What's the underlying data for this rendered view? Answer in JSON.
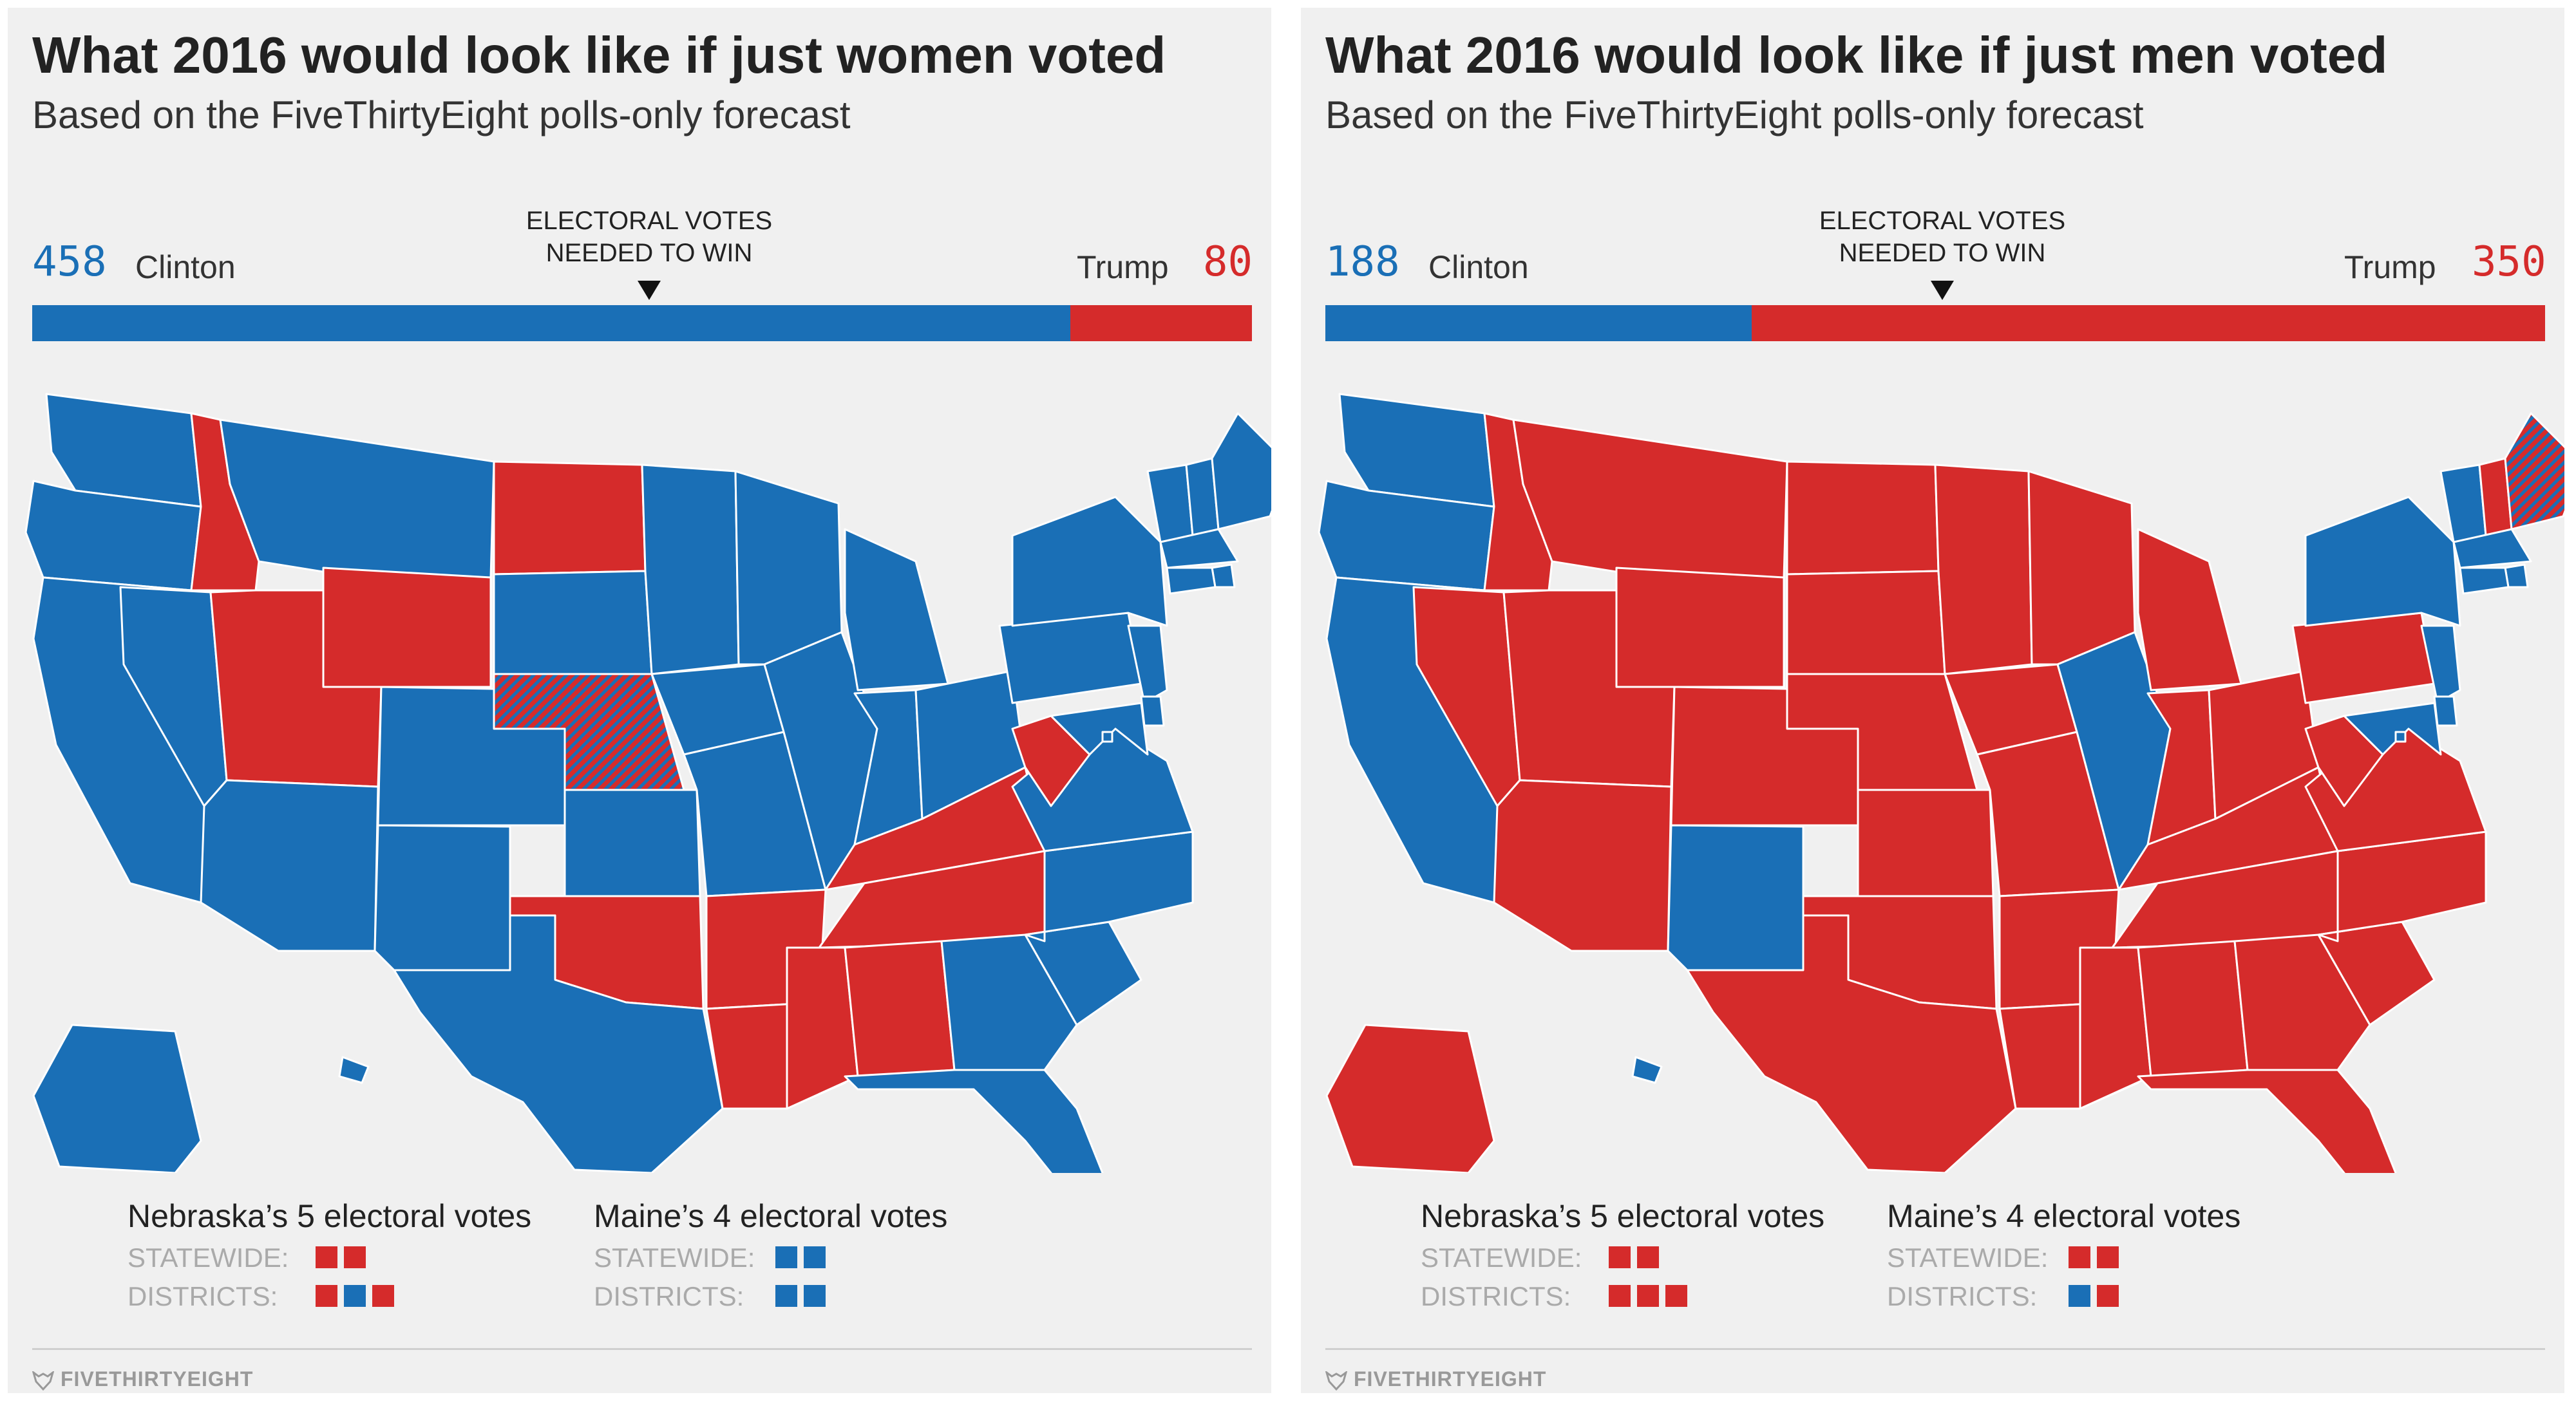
{
  "colors": {
    "clinton": "#1a6fb6",
    "trump": "#d52b2b",
    "border": "#ffffff"
  },
  "common": {
    "subtitle": "Based on the FiveThirtyEight polls-only forecast",
    "ev_line1": "ELECTORAL VOTES",
    "ev_line2": "NEEDED TO WIN",
    "clinton_label": "Clinton",
    "trump_label": "Trump",
    "statewide_label": "STATEWIDE:",
    "districts_label": "DISTRICTS:",
    "nebraska_title": "Nebraska’s 5 electoral votes",
    "maine_title": "Maine’s 4 electoral votes",
    "logo": "FIVETHIRTYEIGHT"
  },
  "women": {
    "title": "What 2016 would look like if just women voted",
    "clinton_ev": "458",
    "trump_ev": "80",
    "nebraska": {
      "statewide": [
        "trump",
        "trump"
      ],
      "districts": [
        "trump",
        "clinton",
        "trump"
      ]
    },
    "maine": {
      "statewide": [
        "clinton",
        "clinton"
      ],
      "districts": [
        "clinton",
        "clinton"
      ]
    },
    "trump_states": [
      "ID",
      "UT",
      "WY",
      "ND",
      "OK",
      "AR",
      "LA",
      "MS",
      "AL",
      "TN",
      "KY",
      "WV"
    ],
    "split_states": {
      "NE": "trump-clinton"
    }
  },
  "men": {
    "title": "What 2016 would look like if just men voted",
    "clinton_ev": "188",
    "trump_ev": "350",
    "nebraska": {
      "statewide": [
        "trump",
        "trump"
      ],
      "districts": [
        "trump",
        "trump",
        "trump"
      ]
    },
    "maine": {
      "statewide": [
        "trump",
        "trump"
      ],
      "districts": [
        "clinton",
        "trump"
      ]
    },
    "clinton_states": [
      "WA",
      "OR",
      "CA",
      "NM",
      "IL",
      "NY",
      "VT",
      "MA",
      "RI",
      "CT",
      "NJ",
      "DE",
      "MD",
      "DC",
      "HI"
    ],
    "split_states": {
      "ME": "clinton-trump"
    }
  }
}
